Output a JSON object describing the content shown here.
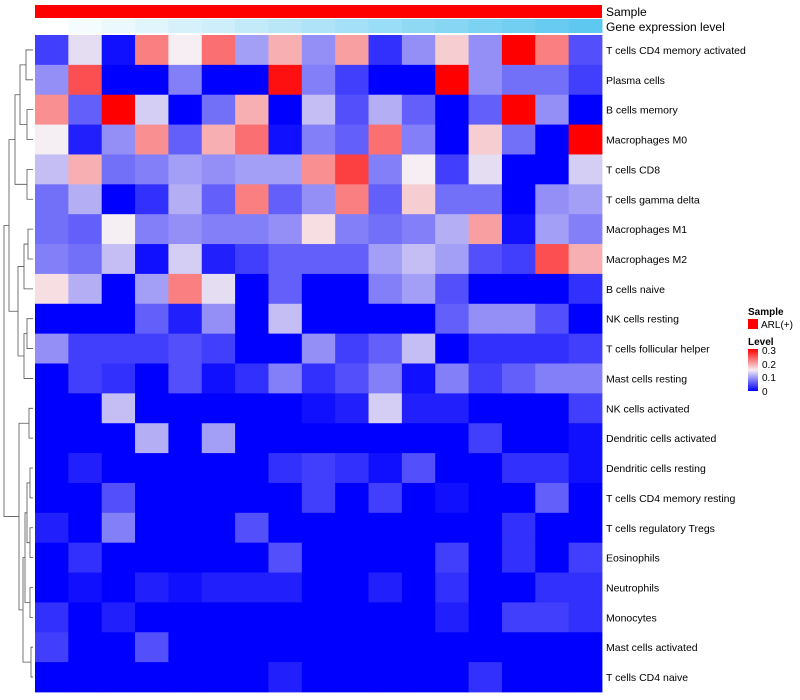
{
  "chart_data": {
    "type": "heatmap",
    "annotation_rows": [
      "Sample",
      "Gene expression level"
    ],
    "annotation_colors": {
      "Sample": "#ff0000",
      "Gene expression level": [
        "#ffffff",
        "#5ec8f0"
      ]
    },
    "rows": [
      "T cells CD4 memory activated",
      "Plasma cells",
      "B cells memory",
      "Macrophages M0",
      "T cells CD8",
      "T cells gamma delta",
      "Macrophages M1",
      "Macrophages M2",
      "B cells naive",
      "NK cells resting",
      "T cells follicular helper",
      "Mast cells resting",
      "NK cells activated",
      "Dendritic cells activated",
      "Dendritic cells resting",
      "T cells CD4 memory resting",
      "T cells regulatory  Tregs",
      "Eosinophils",
      "Neutrophils",
      "Monocytes",
      "Mast cells activated",
      "T cells CD4 naive"
    ],
    "n_columns": 17,
    "values": [
      [
        0.04,
        0.14,
        0.01,
        0.22,
        0.15,
        0.23,
        0.1,
        0.19,
        0.09,
        0.2,
        0.03,
        0.09,
        0.17,
        0.09,
        0.3,
        0.22,
        0.05
      ],
      [
        0.09,
        0.25,
        0.0,
        0.0,
        0.08,
        0.0,
        0.0,
        0.29,
        0.08,
        0.04,
        0.0,
        0.0,
        0.3,
        0.09,
        0.07,
        0.07,
        0.04
      ],
      [
        0.21,
        0.06,
        0.3,
        0.13,
        0.0,
        0.07,
        0.19,
        0.0,
        0.12,
        0.05,
        0.11,
        0.06,
        0.0,
        0.06,
        0.3,
        0.09,
        0.0
      ],
      [
        0.15,
        0.02,
        0.09,
        0.21,
        0.06,
        0.19,
        0.23,
        0.01,
        0.08,
        0.06,
        0.23,
        0.08,
        0.0,
        0.17,
        0.07,
        0.0,
        0.3
      ],
      [
        0.12,
        0.19,
        0.07,
        0.08,
        0.1,
        0.09,
        0.1,
        0.1,
        0.21,
        0.26,
        0.08,
        0.15,
        0.04,
        0.14,
        0.0,
        0.0,
        0.13
      ],
      [
        0.07,
        0.11,
        0.0,
        0.03,
        0.11,
        0.06,
        0.22,
        0.06,
        0.09,
        0.22,
        0.06,
        0.17,
        0.07,
        0.07,
        0.0,
        0.09,
        0.1
      ],
      [
        0.07,
        0.06,
        0.15,
        0.08,
        0.09,
        0.08,
        0.08,
        0.09,
        0.16,
        0.08,
        0.07,
        0.08,
        0.11,
        0.2,
        0.01,
        0.1,
        0.08
      ],
      [
        0.08,
        0.07,
        0.12,
        0.01,
        0.13,
        0.02,
        0.04,
        0.06,
        0.06,
        0.06,
        0.1,
        0.12,
        0.1,
        0.05,
        0.04,
        0.25,
        0.19
      ],
      [
        0.16,
        0.11,
        0.0,
        0.1,
        0.22,
        0.14,
        0.0,
        0.06,
        0.0,
        0.0,
        0.08,
        0.1,
        0.05,
        0.0,
        0.0,
        0.0,
        0.03
      ],
      [
        0.0,
        0.0,
        0.0,
        0.06,
        0.02,
        0.09,
        0.0,
        0.12,
        0.0,
        0.0,
        0.0,
        0.0,
        0.06,
        0.09,
        0.09,
        0.05,
        0.0
      ],
      [
        0.09,
        0.04,
        0.04,
        0.04,
        0.05,
        0.04,
        0.0,
        0.0,
        0.09,
        0.04,
        0.06,
        0.12,
        0.0,
        0.03,
        0.03,
        0.03,
        0.04
      ],
      [
        0.0,
        0.04,
        0.03,
        0.0,
        0.05,
        0.01,
        0.03,
        0.08,
        0.03,
        0.05,
        0.08,
        0.01,
        0.08,
        0.04,
        0.06,
        0.08,
        0.08
      ],
      [
        0.0,
        0.0,
        0.12,
        0.0,
        0.0,
        0.0,
        0.0,
        0.0,
        0.01,
        0.02,
        0.13,
        0.02,
        0.02,
        0.0,
        0.0,
        0.0,
        0.04
      ],
      [
        0.0,
        0.0,
        0.0,
        0.11,
        0.0,
        0.1,
        0.0,
        0.0,
        0.0,
        0.0,
        0.0,
        0.0,
        0.0,
        0.04,
        0.0,
        0.0,
        0.01
      ],
      [
        0.0,
        0.02,
        0.0,
        0.0,
        0.0,
        0.0,
        0.0,
        0.03,
        0.04,
        0.03,
        0.01,
        0.05,
        0.0,
        0.0,
        0.03,
        0.03,
        0.01
      ],
      [
        0.0,
        0.0,
        0.05,
        0.0,
        0.0,
        0.0,
        0.0,
        0.0,
        0.04,
        0.0,
        0.04,
        0.0,
        0.01,
        0.0,
        0.0,
        0.06,
        0.0
      ],
      [
        0.02,
        0.0,
        0.08,
        0.0,
        0.0,
        0.0,
        0.05,
        0.0,
        0.0,
        0.0,
        0.0,
        0.0,
        0.0,
        0.0,
        0.03,
        0.0,
        0.0
      ],
      [
        0.0,
        0.03,
        0.0,
        0.0,
        0.0,
        0.0,
        0.0,
        0.05,
        0.0,
        0.0,
        0.0,
        0.0,
        0.04,
        0.0,
        0.03,
        0.0,
        0.04
      ],
      [
        0.0,
        0.01,
        0.0,
        0.02,
        0.01,
        0.02,
        0.02,
        0.02,
        0.0,
        0.0,
        0.02,
        0.0,
        0.03,
        0.0,
        0.0,
        0.03,
        0.03
      ],
      [
        0.03,
        0.0,
        0.02,
        0.0,
        0.0,
        0.0,
        0.0,
        0.0,
        0.0,
        0.0,
        0.0,
        0.0,
        0.02,
        0.0,
        0.04,
        0.04,
        0.03
      ],
      [
        0.04,
        0.0,
        0.0,
        0.05,
        0.0,
        0.0,
        0.0,
        0.0,
        0.0,
        0.0,
        0.0,
        0.0,
        0.0,
        0.0,
        0.0,
        0.0,
        0.0
      ],
      [
        0.0,
        0.0,
        0.0,
        0.0,
        0.0,
        0.0,
        0.0,
        0.02,
        0.0,
        0.0,
        0.0,
        0.0,
        0.0,
        0.03,
        0.0,
        0.0,
        0.0
      ]
    ],
    "color_scale": {
      "min": 0,
      "mid": 0.15,
      "max": 0.3,
      "low": "#0000ff",
      "midcolor": "#f5eef2",
      "high": "#ff0000"
    },
    "legend": {
      "sample_title": "Sample",
      "sample_label": "ARL(+)",
      "level_title": "Level",
      "level_ticks": [
        "0.3",
        "0.2",
        "0.1",
        "0"
      ]
    }
  }
}
